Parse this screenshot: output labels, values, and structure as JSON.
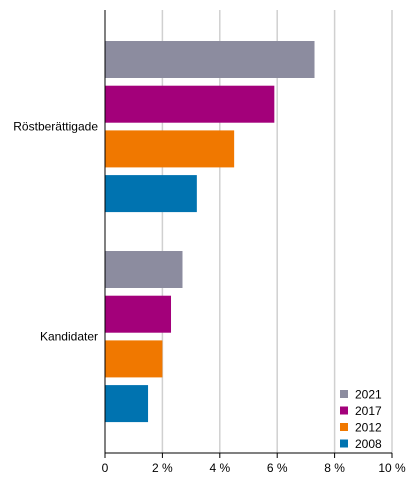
{
  "chart_data": {
    "type": "bar",
    "orientation": "horizontal",
    "categories": [
      "Röstberättigade",
      "Kandidater"
    ],
    "series": [
      {
        "name": "2021",
        "color": "#8c8c9f",
        "values": [
          7.3,
          2.7
        ]
      },
      {
        "name": "2017",
        "color": "#a3007a",
        "values": [
          5.9,
          2.3
        ]
      },
      {
        "name": "2012",
        "color": "#f07800",
        "values": [
          4.5,
          2.0
        ]
      },
      {
        "name": "2008",
        "color": "#0073b0",
        "values": [
          3.2,
          1.5
        ]
      }
    ],
    "xlim": [
      0,
      10
    ],
    "x_ticks": [
      0,
      2,
      4,
      6,
      8,
      10
    ],
    "x_tick_labels": [
      "0",
      "2 %",
      "4 %",
      "6 %",
      "8 %",
      "10 %"
    ],
    "grid": "vertical",
    "legend_position": "bottom-right",
    "title": "",
    "xlabel": "",
    "ylabel": ""
  }
}
